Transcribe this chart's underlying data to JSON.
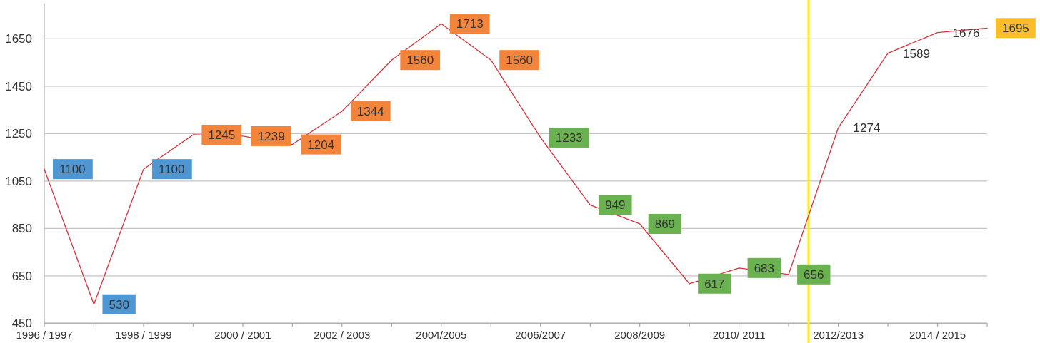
{
  "chart_data": {
    "type": "line",
    "categories": [
      "1996 / 1997",
      null,
      "1998 / 1999",
      null,
      "2000 / 2001",
      null,
      "2002 / 2003",
      null,
      "2004/2005",
      null,
      "2006/2007",
      null,
      "2008/2009",
      null,
      "2010/ 2011",
      null,
      "2012/2013",
      null,
      "2014 / 2015",
      null
    ],
    "ylim": [
      450,
      1800
    ],
    "yticks": [
      450,
      650,
      850,
      1050,
      1250,
      1450,
      1650
    ],
    "grid": "y",
    "series": [
      {
        "color": "#d7333b",
        "values": [
          1100,
          530,
          1100,
          1245,
          1239,
          1204,
          1344,
          1560,
          1713,
          1560,
          1233,
          949,
          869,
          617,
          683,
          656,
          1274,
          1589,
          1676,
          1695
        ],
        "colors": [
          "#4f97d3",
          "#4f97d3",
          "#4f97d3",
          "#f3843b",
          "#f3843b",
          "#f3843b",
          "#f3843b",
          "#f3843b",
          "#f3843b",
          "#f3843b",
          "#6ab150",
          "#6ab150",
          "#6ab150",
          "#6ab150",
          "#6ab150",
          "#6ab150",
          null,
          null,
          null,
          "#fbbd2a"
        ]
      }
    ],
    "data_labels": true
  }
}
